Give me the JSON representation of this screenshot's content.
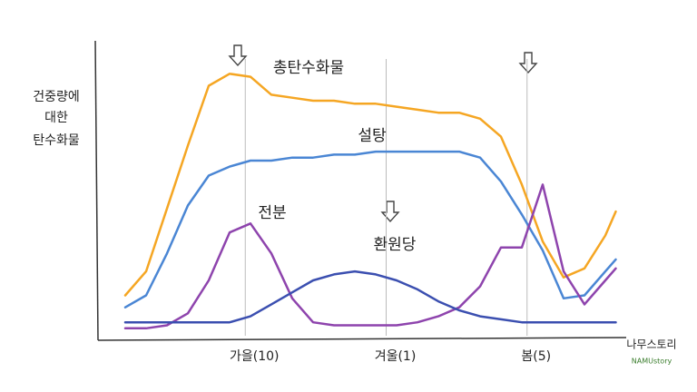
{
  "chart_data": {
    "type": "line",
    "ylabel": [
      "건중량에",
      "대한",
      "탄수화물"
    ],
    "x": [
      4,
      8,
      12,
      16,
      20,
      24,
      28,
      32,
      36,
      40,
      44,
      48,
      52,
      56,
      60,
      64,
      68,
      72,
      76,
      80,
      84,
      88,
      92,
      96,
      98
    ],
    "xlim": [
      0,
      100
    ],
    "ylim": [
      0,
      100
    ],
    "xticks": [
      {
        "value": 27,
        "label": "가을(10)"
      },
      {
        "value": 54,
        "label": "겨울(1)"
      },
      {
        "value": 81,
        "label": "봄(5)"
      }
    ],
    "grid": true,
    "series": [
      {
        "name": "총탄수화물",
        "color": "#f5a623",
        "values": [
          15,
          23,
          44,
          65,
          85,
          89,
          88,
          82,
          81,
          80,
          80,
          79,
          79,
          78,
          77,
          76,
          76,
          74,
          68,
          52,
          33,
          21,
          24,
          35,
          43
        ]
      },
      {
        "name": "설탕",
        "color": "#4a86d4",
        "values": [
          11,
          15,
          29,
          45,
          55,
          58,
          60,
          60,
          61,
          61,
          62,
          62,
          63,
          63,
          63,
          63,
          63,
          61,
          53,
          42,
          30,
          14,
          15,
          23,
          27
        ]
      },
      {
        "name": "전분",
        "color": "#8e44ad",
        "values": [
          4,
          4,
          5,
          9,
          20,
          36,
          39,
          29,
          14,
          6,
          5,
          5,
          5,
          5,
          6,
          8,
          11,
          18,
          31,
          31,
          52,
          23,
          12,
          20,
          24
        ]
      },
      {
        "name": "환원당",
        "color": "#3b4fb0",
        "values": [
          6,
          6,
          6,
          6,
          6,
          6,
          8,
          12,
          16,
          20,
          22,
          23,
          22,
          20,
          17,
          13,
          10,
          8,
          7,
          6,
          6,
          6,
          6,
          6,
          6
        ]
      }
    ],
    "logo": "나무스토리",
    "logo_sub": "NAMUstory"
  }
}
